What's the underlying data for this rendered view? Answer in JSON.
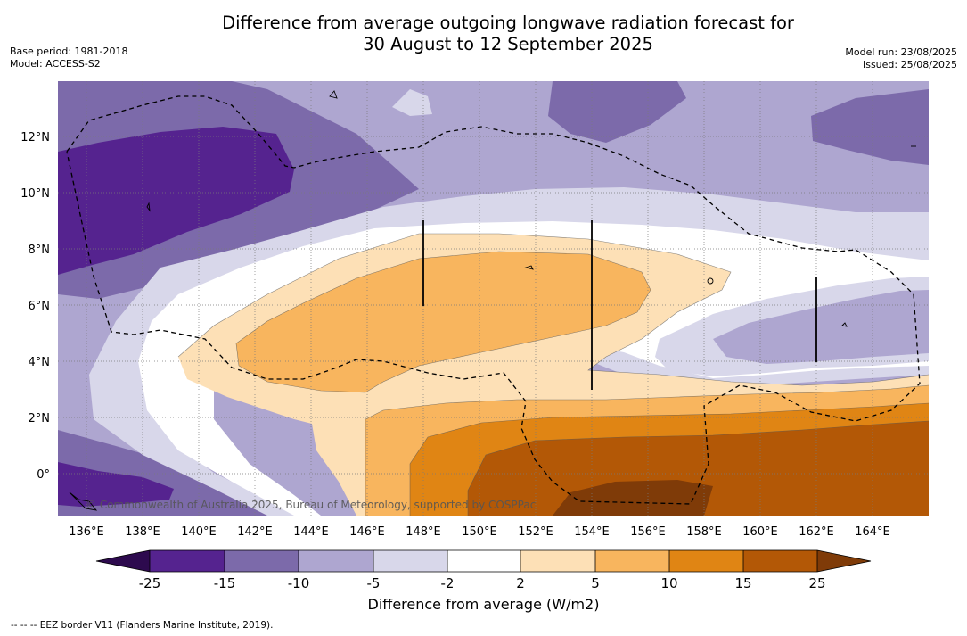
{
  "header": {
    "title_line1": "Difference from average outgoing longwave radiation forecast for",
    "title_line2": "30 August to 12 September 2025",
    "base_period": "Base period: 1981-2018",
    "model": "Model: ACCESS-S2",
    "model_run": "Model run: 23/08/2025",
    "issued": "Issued: 25/08/2025"
  },
  "map": {
    "x_ticks": [
      "136°E",
      "138°E",
      "140°E",
      "142°E",
      "144°E",
      "146°E",
      "148°E",
      "150°E",
      "152°E",
      "154°E",
      "156°E",
      "158°E",
      "160°E",
      "162°E",
      "164°E"
    ],
    "y_ticks": [
      "12°N",
      "10°N",
      "8°N",
      "6°N",
      "4°N",
      "2°N",
      "0°"
    ],
    "credit": "© Commonwealth of Australia 2025, Bureau of Meteorology, supported by COSPPac"
  },
  "colorbar": {
    "labels": [
      "-25",
      "-15",
      "-10",
      "-5",
      "-2",
      "2",
      "5",
      "10",
      "15",
      "25"
    ],
    "colors": [
      "#2d0a4e",
      "#55238f",
      "#7c6aaa",
      "#aea6d0",
      "#d8d7ea",
      "#ffffff",
      "#fde0b6",
      "#f8b55e",
      "#e08514",
      "#b35806",
      "#7f3b08"
    ],
    "title": "Difference from average (W/m2)"
  },
  "legend": {
    "eez": "--  --  -- EEZ border V11 (Flanders Marine Institute, 2019)."
  }
}
